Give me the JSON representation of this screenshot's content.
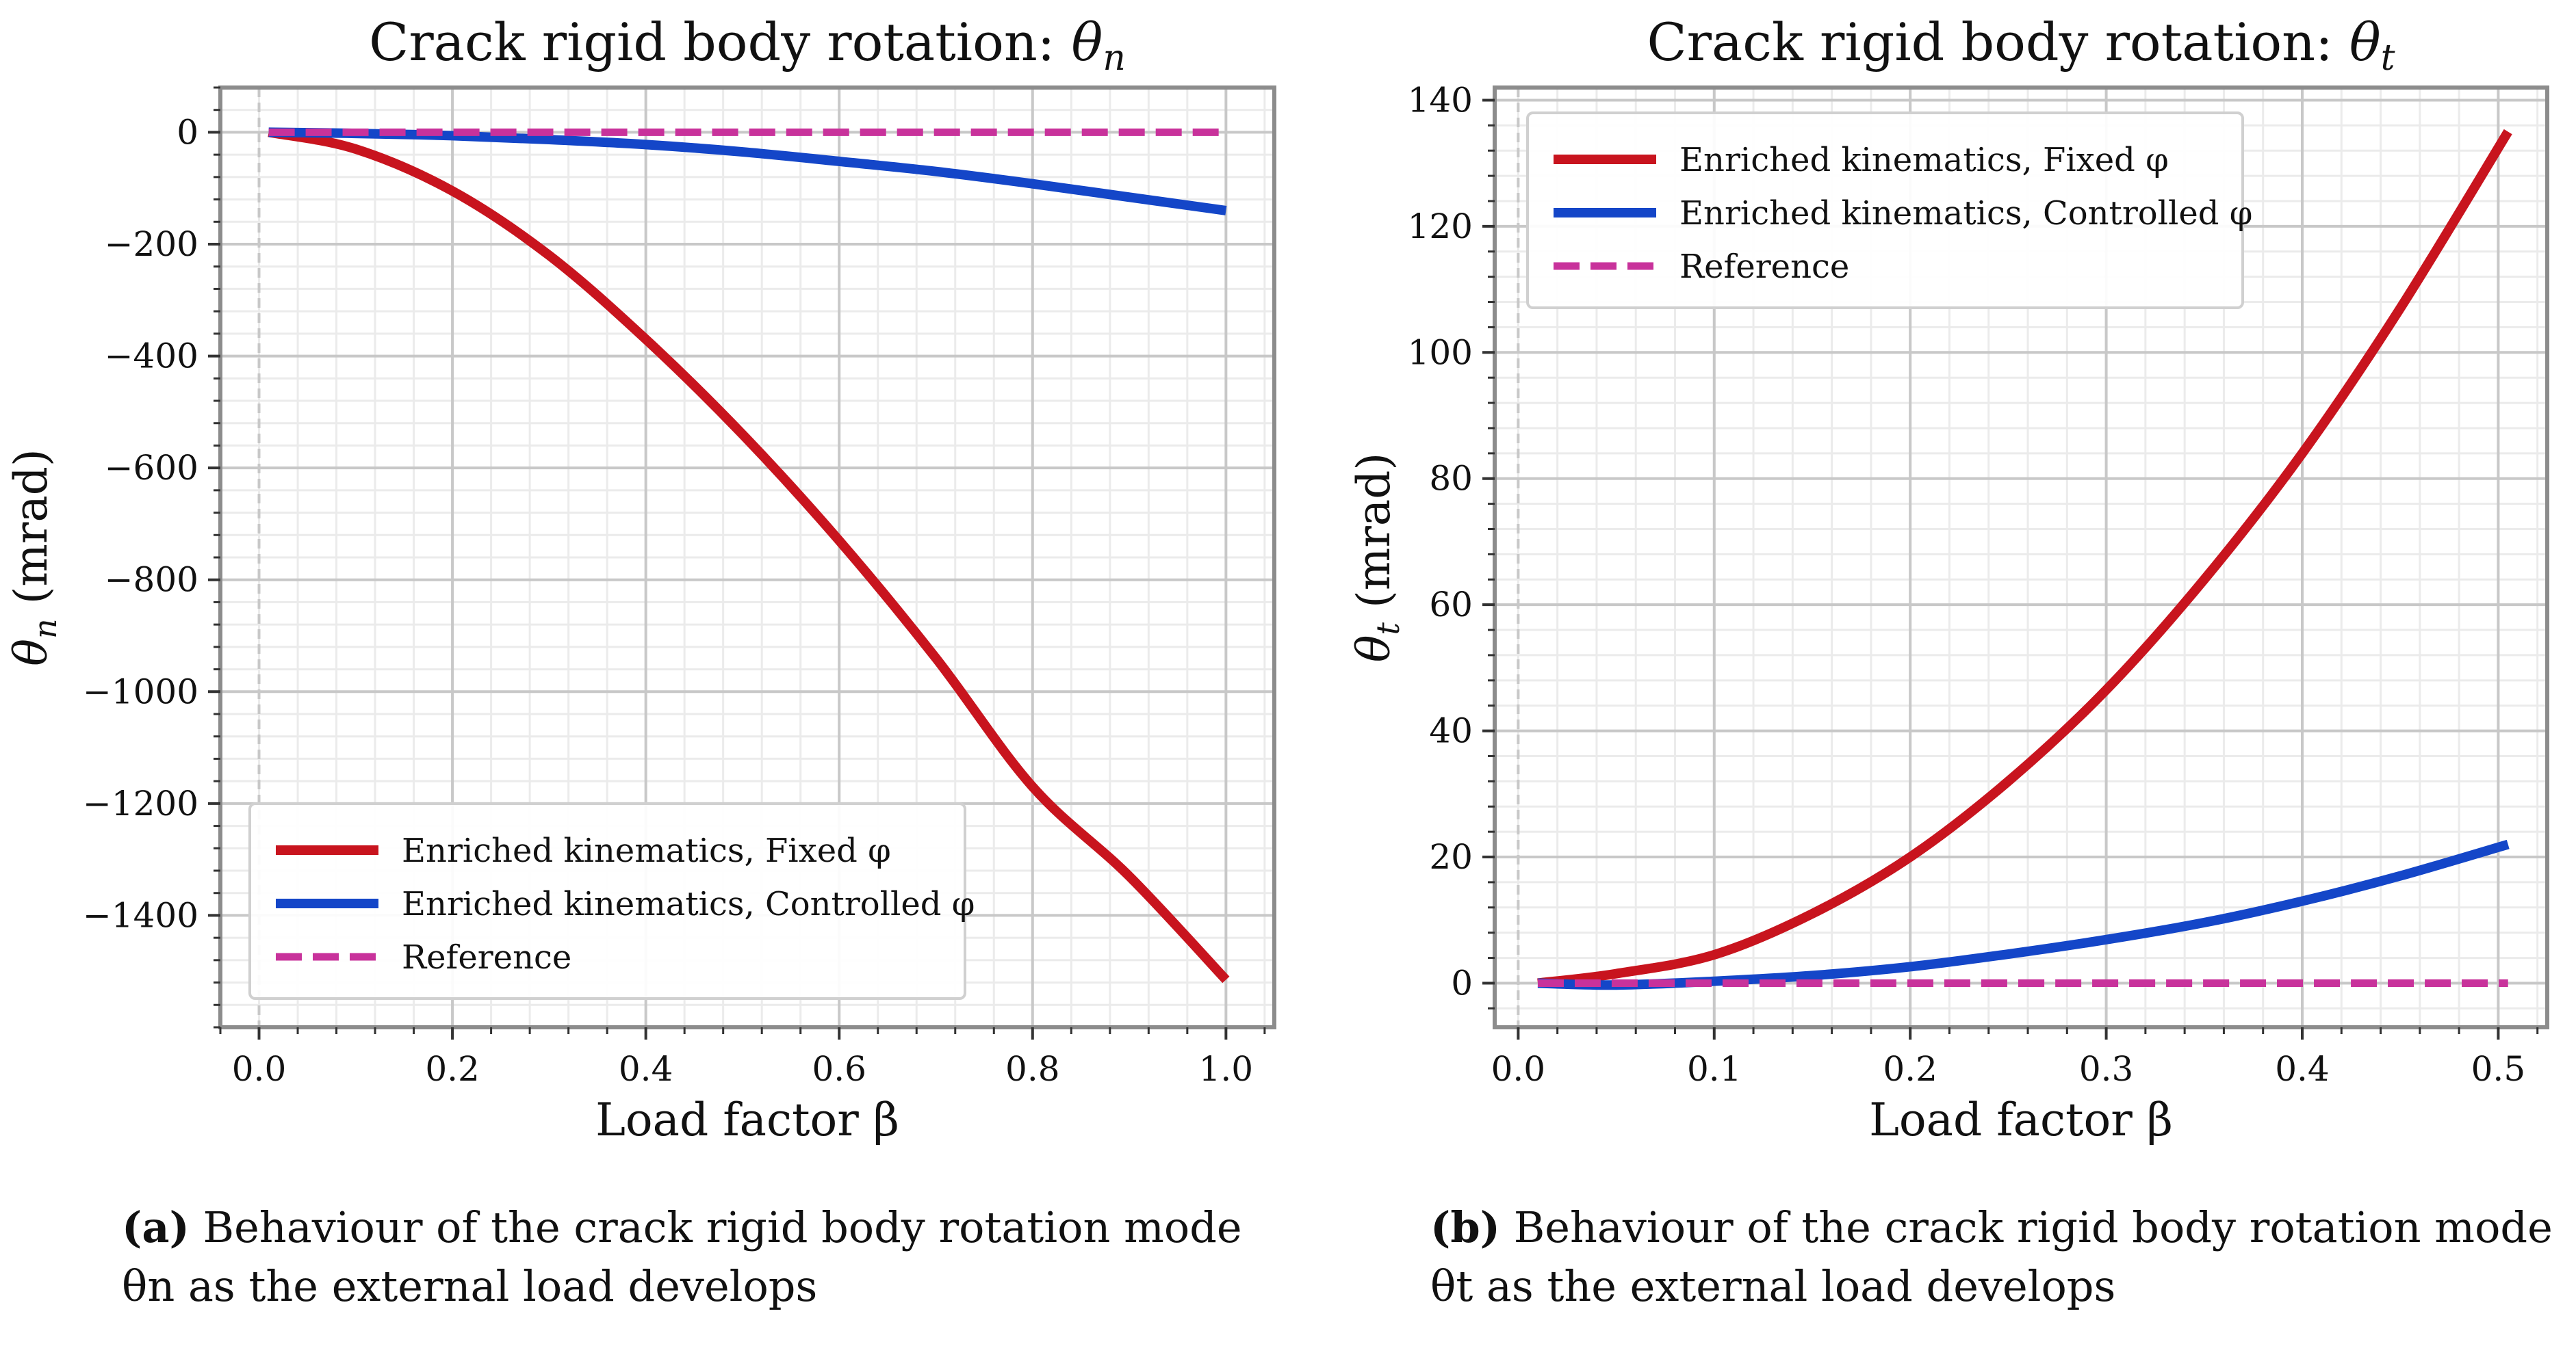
{
  "chart_data": [
    {
      "type": "line",
      "title_prefix": "Crack rigid body rotation: ",
      "title_symbol": "θ",
      "title_sub": "n",
      "xlabel": "Load factor β",
      "ylabel_symbol": "θ",
      "ylabel_sub": "n",
      "ylabel_unit": " (mrad)",
      "xlim": [
        -0.04,
        1.05
      ],
      "ylim": [
        -1600,
        80
      ],
      "x_ticks": [
        0.0,
        0.2,
        0.4,
        0.6,
        0.8,
        1.0
      ],
      "x_tick_labels": [
        "0.0",
        "0.2",
        "0.4",
        "0.6",
        "0.8",
        "1.0"
      ],
      "y_ticks": [
        0,
        -200,
        -400,
        -600,
        -800,
        -1000,
        -1200,
        -1400
      ],
      "y_tick_labels": [
        "0",
        "−200",
        "−400",
        "−600",
        "−800",
        "−1000",
        "−1200",
        "−1400"
      ],
      "grid": true,
      "legend_position": "lower-left",
      "series": [
        {
          "name": "Enriched kinematics, Fixed φ",
          "color": "#c8141e",
          "style": "solid",
          "x": [
            0.01,
            0.1,
            0.2,
            0.3,
            0.4,
            0.5,
            0.6,
            0.7,
            0.8,
            0.9,
            1.0
          ],
          "values": [
            0,
            -30,
            -105,
            -220,
            -370,
            -540,
            -730,
            -940,
            -1170,
            -1330,
            -1515
          ]
        },
        {
          "name": "Enriched kinematics, Controlled φ",
          "color": "#1446c8",
          "style": "solid",
          "x": [
            0.01,
            0.1,
            0.2,
            0.3,
            0.4,
            0.5,
            0.6,
            0.7,
            0.8,
            0.9,
            1.0
          ],
          "values": [
            0,
            -2,
            -6,
            -13,
            -22,
            -35,
            -52,
            -70,
            -92,
            -116,
            -140
          ]
        },
        {
          "name": "Reference",
          "color": "#c8329b",
          "style": "dashed",
          "x": [
            0.01,
            1.0
          ],
          "values": [
            0,
            0
          ]
        }
      ]
    },
    {
      "type": "line",
      "title_prefix": "Crack rigid body rotation: ",
      "title_symbol": "θ",
      "title_sub": "t",
      "xlabel": "Load factor β",
      "ylabel_symbol": "θ",
      "ylabel_sub": "t",
      "ylabel_unit": " (mrad)",
      "xlim": [
        -0.012,
        0.525
      ],
      "ylim": [
        -7,
        142
      ],
      "x_ticks": [
        0.0,
        0.1,
        0.2,
        0.3,
        0.4,
        0.5
      ],
      "x_tick_labels": [
        "0.0",
        "0.1",
        "0.2",
        "0.3",
        "0.4",
        "0.5"
      ],
      "y_ticks": [
        0,
        20,
        40,
        60,
        80,
        100,
        120,
        140
      ],
      "y_tick_labels": [
        "0",
        "20",
        "40",
        "60",
        "80",
        "100",
        "120",
        "140"
      ],
      "grid": true,
      "legend_position": "upper-left",
      "series": [
        {
          "name": "Enriched kinematics, Fixed φ",
          "color": "#c8141e",
          "style": "solid",
          "x": [
            0.01,
            0.05,
            0.1,
            0.15,
            0.2,
            0.25,
            0.3,
            0.35,
            0.4,
            0.45,
            0.505
          ],
          "values": [
            0,
            1.5,
            4.5,
            11,
            20,
            32,
            46.5,
            64,
            84,
            107,
            135
          ]
        },
        {
          "name": "Enriched kinematics, Controlled φ",
          "color": "#1446c8",
          "style": "solid",
          "x": [
            0.01,
            0.05,
            0.1,
            0.15,
            0.2,
            0.25,
            0.3,
            0.35,
            0.4,
            0.45,
            0.505
          ],
          "values": [
            0,
            -0.3,
            0.3,
            1.2,
            2.6,
            4.6,
            6.9,
            9.6,
            13,
            17,
            22
          ]
        },
        {
          "name": "Reference",
          "color": "#c8329b",
          "style": "dashed",
          "x": [
            0.01,
            0.505
          ],
          "values": [
            0,
            0
          ]
        }
      ]
    }
  ],
  "captions": [
    {
      "label": "(a)",
      "text": " Behaviour of the crack rigid body rotation mode θn as the external load develops"
    },
    {
      "label": "(b)",
      "text": " Behaviour of the crack rigid body rotation mode θt as the external load develops"
    }
  ]
}
